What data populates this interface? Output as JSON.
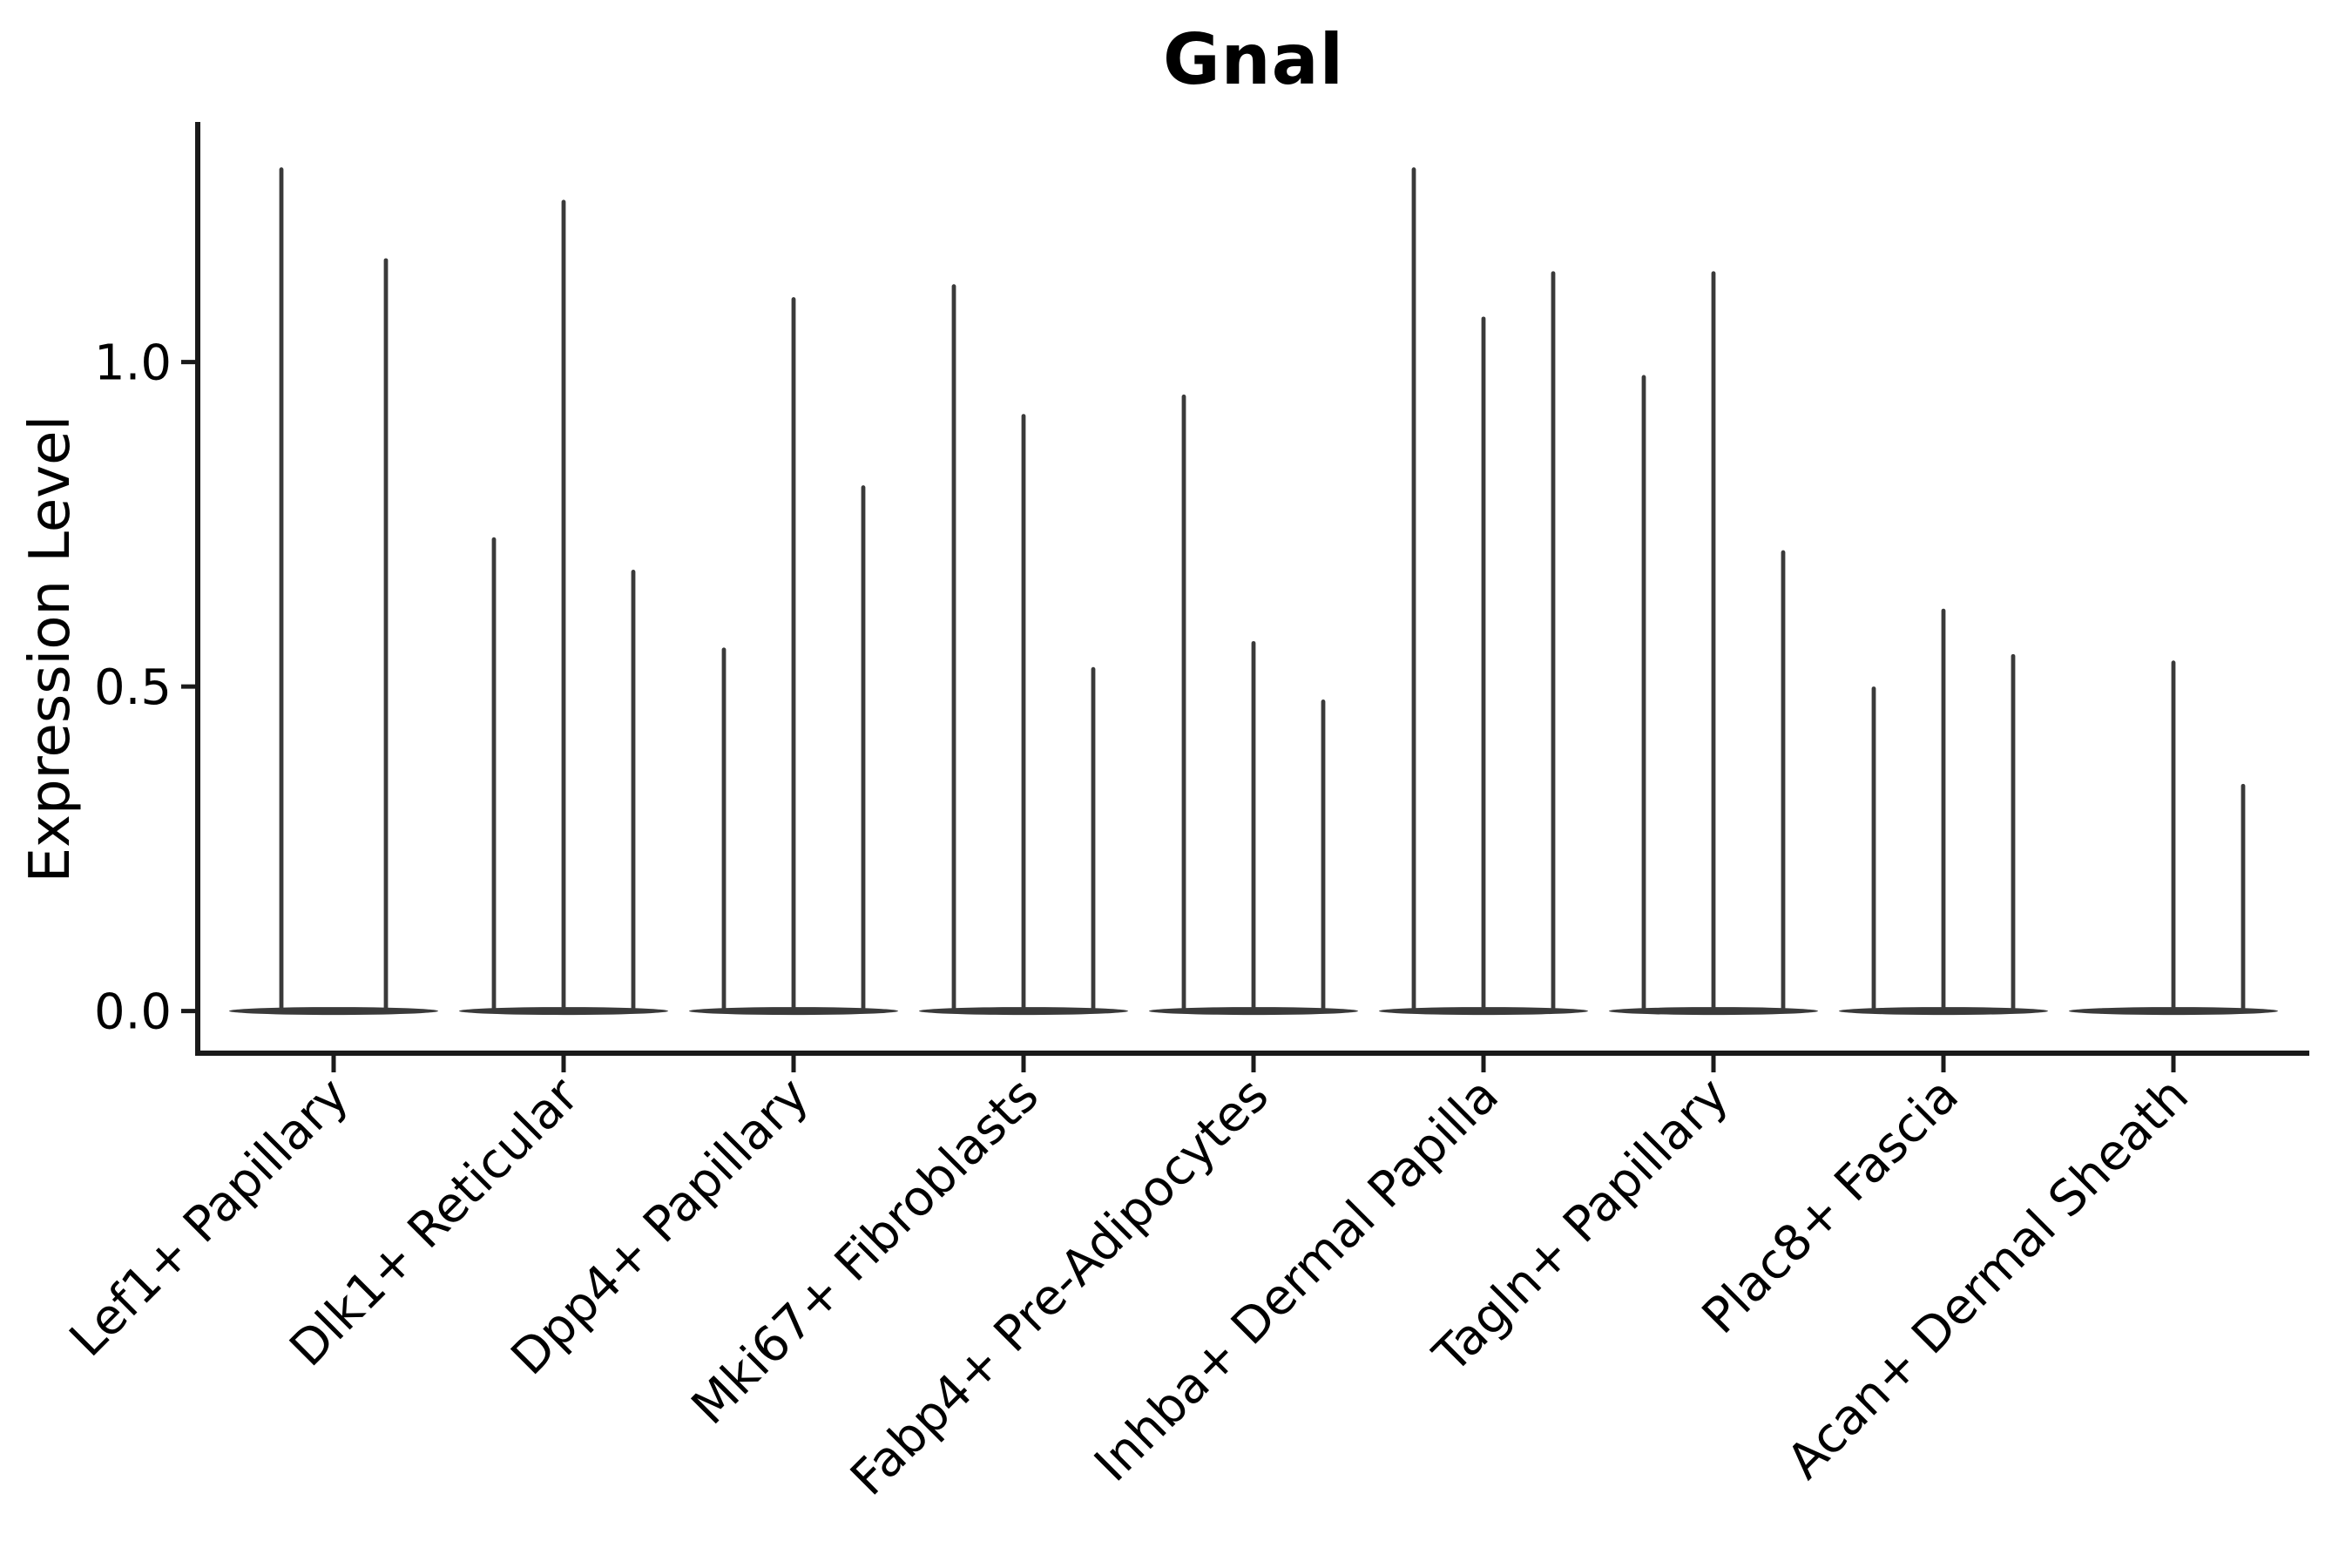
{
  "chart_data": {
    "type": "violin",
    "title": "Gnal",
    "xlabel": "",
    "ylabel": "Expression Level",
    "ytick_labels": [
      "0.0",
      "0.5",
      "1.0"
    ],
    "yticks": [
      0.0,
      0.5,
      1.0
    ],
    "ylim": [
      -0.065,
      1.37
    ],
    "grid": false,
    "legend_position": "none",
    "description": "Sparse violin plot: each cell-type category shows 2-3 near-zero-width violins whose bodies sit at expression 0 with a thin spike up to the maximum expression value.",
    "categories": [
      "Lef1+ Papillary",
      "Dlk1+ Reticular",
      "Dpp4+ Papillary",
      "Mki67+ Fibroblasts",
      "Fabp4+ Pre-Adipocytes",
      "Inhba+ Dermal Papilla",
      "Tagln+ Papillary",
      "Plac8+ Fascia",
      "Acan+ Dermal Sheath"
    ],
    "violins": [
      {
        "category": "Lef1+ Papillary",
        "nslots": 2,
        "baseline_value": 0,
        "spikes": [
          {
            "slot": 0,
            "max": 1.3
          },
          {
            "slot": 1,
            "max": 1.16
          }
        ]
      },
      {
        "category": "Dlk1+ Reticular",
        "nslots": 3,
        "baseline_value": 0,
        "spikes": [
          {
            "slot": 0,
            "max": 0.73
          },
          {
            "slot": 1,
            "max": 1.25
          },
          {
            "slot": 2,
            "max": 0.68
          }
        ]
      },
      {
        "category": "Dpp4+ Papillary",
        "nslots": 3,
        "baseline_value": 0,
        "spikes": [
          {
            "slot": 0,
            "max": 0.56
          },
          {
            "slot": 1,
            "max": 1.1
          },
          {
            "slot": 2,
            "max": 0.81
          }
        ]
      },
      {
        "category": "Mki67+ Fibroblasts",
        "nslots": 3,
        "baseline_value": 0,
        "spikes": [
          {
            "slot": 0,
            "max": 1.12
          },
          {
            "slot": 1,
            "max": 0.92
          },
          {
            "slot": 2,
            "max": 0.53
          }
        ]
      },
      {
        "category": "Fabp4+ Pre-Adipocytes",
        "nslots": 3,
        "baseline_value": 0,
        "spikes": [
          {
            "slot": 0,
            "max": 0.95
          },
          {
            "slot": 1,
            "max": 0.57
          },
          {
            "slot": 2,
            "max": 0.48
          }
        ]
      },
      {
        "category": "Inhba+ Dermal Papilla",
        "nslots": 3,
        "baseline_value": 0,
        "spikes": [
          {
            "slot": 0,
            "max": 1.3
          },
          {
            "slot": 1,
            "max": 1.07
          },
          {
            "slot": 2,
            "max": 1.14
          }
        ]
      },
      {
        "category": "Tagln+ Papillary",
        "nslots": 3,
        "baseline_value": 0,
        "spikes": [
          {
            "slot": 0,
            "max": 0.98
          },
          {
            "slot": 1,
            "max": 1.14
          },
          {
            "slot": 2,
            "max": 0.71
          }
        ]
      },
      {
        "category": "Plac8+ Fascia",
        "nslots": 3,
        "baseline_value": 0,
        "spikes": [
          {
            "slot": 0,
            "max": 0.5
          },
          {
            "slot": 1,
            "max": 0.62
          },
          {
            "slot": 2,
            "max": 0.55
          }
        ]
      },
      {
        "category": "Acan+ Dermal Sheath",
        "nslots": 3,
        "baseline_value": 0,
        "spikes": [
          {
            "slot": 1,
            "max": 0.54
          },
          {
            "slot": 2,
            "max": 0.35
          }
        ]
      }
    ],
    "colors": {
      "violin": "#3a3a3a",
      "axis": "#1a1a1a",
      "text": "#000000",
      "background": "#ffffff"
    }
  }
}
